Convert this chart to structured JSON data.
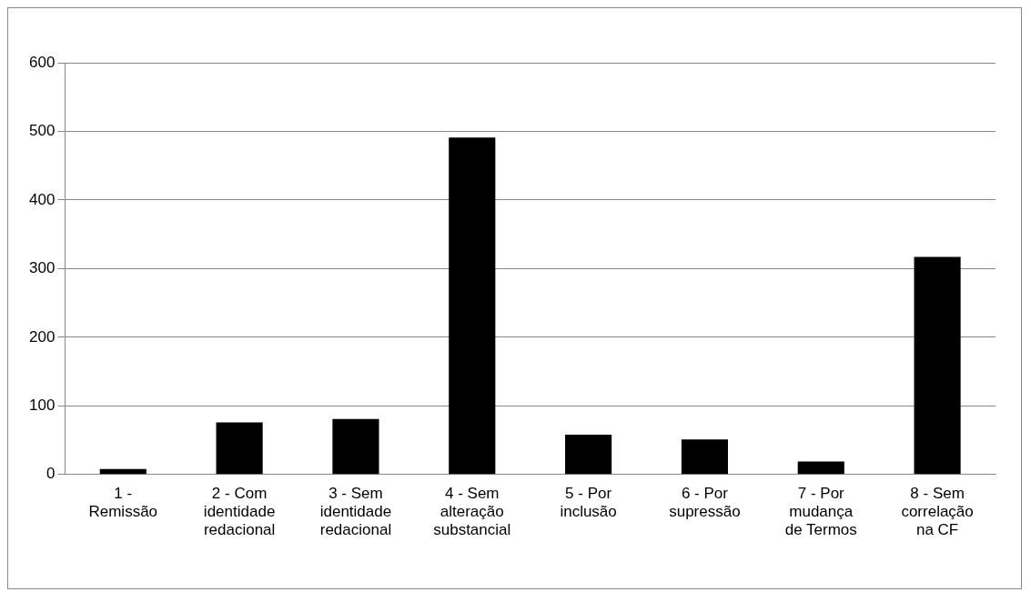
{
  "chart_data": {
    "type": "bar",
    "categories": [
      "1 - Remissão",
      "2 - Com identidade redacional",
      "3 - Sem identidade redacional",
      "4 - Sem alteração substancial",
      "5 - Por inclusão",
      "6 - Por supressão",
      "7 - Por mudança de Termos",
      "8 - Sem correlação na CF"
    ],
    "values": [
      8,
      76,
      81,
      491,
      58,
      51,
      19,
      317
    ],
    "color": "#000000",
    "ylim": [
      0,
      600
    ],
    "yticks": [
      0,
      100,
      200,
      300,
      400,
      500,
      600
    ],
    "grid": "y",
    "legend": false
  }
}
